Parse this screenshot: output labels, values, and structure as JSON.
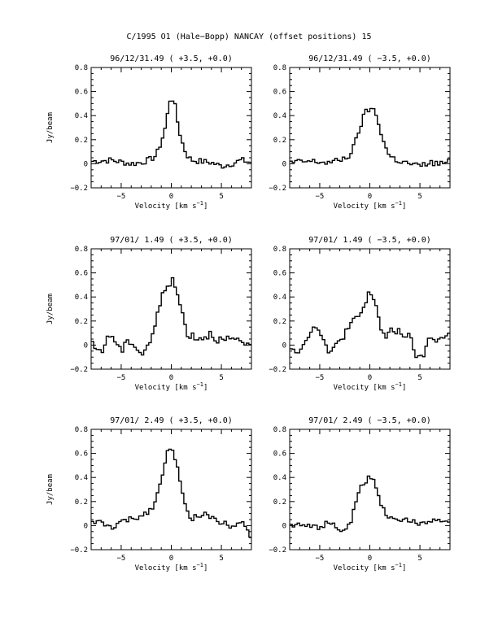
{
  "figure": {
    "suptitle": "C/1995 O1 (Hale−Bopp)   NANCAY     (offset positions)   15"
  },
  "chart_data": [
    {
      "type": "line",
      "title": "96/12/31.49  ( +3.5, +0.0)",
      "xlabel": "Velocity [km s",
      "xlabel_sup": "−1",
      "xlabel_close": "]",
      "ylabel": "Jy/beam",
      "xlim": [
        -8,
        8
      ],
      "ylim": [
        -0.2,
        0.8
      ],
      "xticks": [
        "−5",
        "0",
        "5"
      ],
      "yticks": [
        "−0.2",
        "0",
        "0.2",
        "0.4",
        "0.6",
        "0.8"
      ],
      "step": true,
      "x": [
        -8,
        -6,
        -4,
        -3,
        -2,
        -1.5,
        -1,
        -0.5,
        -0.2,
        0,
        0.3,
        0.5,
        1,
        1.5,
        2,
        3,
        4,
        5,
        6,
        7,
        8
      ],
      "y": [
        0.02,
        0.03,
        0.0,
        0.01,
        0.04,
        0.07,
        0.18,
        0.33,
        0.52,
        0.55,
        0.52,
        0.4,
        0.2,
        0.08,
        0.03,
        0.02,
        0.01,
        -0.02,
        0.0,
        0.03,
        0.01
      ]
    },
    {
      "type": "line",
      "title": "96/12/31.49  ( −3.5, +0.0)",
      "xlabel": "Velocity [km s",
      "xlabel_sup": "−1",
      "xlabel_close": "]",
      "ylabel": "",
      "xlim": [
        -8,
        8
      ],
      "ylim": [
        -0.2,
        0.8
      ],
      "xticks": [
        "−5",
        "0",
        "5"
      ],
      "yticks": [
        "−0.2",
        "0",
        "0.2",
        "0.4",
        "0.6",
        "0.8"
      ],
      "step": true,
      "x": [
        -8,
        -6,
        -4,
        -3,
        -2,
        -1.5,
        -1,
        -0.5,
        0,
        0.5,
        1,
        1.5,
        2,
        3,
        4,
        5,
        6,
        7,
        8
      ],
      "y": [
        0.01,
        0.02,
        0.01,
        0.03,
        0.07,
        0.16,
        0.3,
        0.42,
        0.46,
        0.44,
        0.3,
        0.15,
        0.06,
        0.02,
        0.0,
        -0.02,
        0.01,
        0.0,
        0.02
      ]
    },
    {
      "type": "line",
      "title": "97/01/ 1.49  ( +3.5, +0.0)",
      "xlabel": "Velocity [km s",
      "xlabel_sup": "−1",
      "xlabel_close": "]",
      "ylabel": "Jy/beam",
      "xlim": [
        -8,
        8
      ],
      "ylim": [
        -0.2,
        0.8
      ],
      "xticks": [
        "−5",
        "0",
        "5"
      ],
      "yticks": [
        "−0.2",
        "0",
        "0.2",
        "0.4",
        "0.6",
        "0.8"
      ],
      "step": true,
      "x": [
        -8,
        -7,
        -6,
        -5,
        -4,
        -3,
        -2,
        -1.5,
        -1,
        -0.5,
        0,
        0.5,
        1,
        1.5,
        2,
        3,
        4,
        5,
        6,
        7,
        8
      ],
      "y": [
        0.0,
        -0.05,
        0.1,
        -0.05,
        0.05,
        -0.08,
        0.05,
        0.2,
        0.38,
        0.5,
        0.54,
        0.46,
        0.3,
        0.12,
        0.08,
        0.06,
        0.1,
        0.03,
        0.05,
        0.0,
        0.02
      ]
    },
    {
      "type": "line",
      "title": "97/01/ 1.49  ( −3.5, +0.0)",
      "xlabel": "Velocity [km s",
      "xlabel_sup": "−1",
      "xlabel_close": "]",
      "ylabel": "",
      "xlim": [
        -8,
        8
      ],
      "ylim": [
        -0.2,
        0.8
      ],
      "xticks": [
        "−5",
        "0",
        "5"
      ],
      "yticks": [
        "−0.2",
        "0",
        "0.2",
        "0.4",
        "0.6",
        "0.8"
      ],
      "step": true,
      "x": [
        -8,
        -7,
        -6,
        -5,
        -4,
        -3,
        -2,
        -1.5,
        -1,
        -0.5,
        0,
        0.5,
        1,
        1.5,
        2,
        3,
        4,
        5,
        6,
        7,
        8
      ],
      "y": [
        0.0,
        -0.05,
        0.12,
        0.15,
        -0.1,
        0.05,
        0.15,
        0.2,
        0.25,
        0.32,
        0.44,
        0.38,
        0.18,
        0.05,
        0.1,
        0.12,
        0.05,
        -0.15,
        0.06,
        0.05,
        0.08
      ]
    },
    {
      "type": "line",
      "title": "97/01/ 2.49  ( +3.5, +0.0)",
      "xlabel": "Velocity [km s",
      "xlabel_sup": "−1",
      "xlabel_close": "]",
      "ylabel": "Jy/beam",
      "xlim": [
        -8,
        8
      ],
      "ylim": [
        -0.2,
        0.8
      ],
      "xticks": [
        "−5",
        "0",
        "5"
      ],
      "yticks": [
        "−0.2",
        "0",
        "0.2",
        "0.4",
        "0.6",
        "0.8"
      ],
      "step": true,
      "x": [
        -8,
        -7,
        -6,
        -5,
        -4,
        -3,
        -2,
        -1.5,
        -1,
        -0.5,
        0,
        0.5,
        1,
        1.5,
        2,
        3,
        4,
        5,
        6,
        7,
        8
      ],
      "y": [
        0.04,
        0.02,
        -0.02,
        0.03,
        0.05,
        0.08,
        0.14,
        0.22,
        0.38,
        0.6,
        0.63,
        0.55,
        0.3,
        0.12,
        0.05,
        0.1,
        0.07,
        0.03,
        0.0,
        0.05,
        -0.1
      ]
    },
    {
      "type": "line",
      "title": "97/01/ 2.49  ( −3.5, +0.0)",
      "xlabel": "Velocity [km s",
      "xlabel_sup": "−1",
      "xlabel_close": "]",
      "ylabel": "",
      "xlim": [
        -8,
        8
      ],
      "ylim": [
        -0.2,
        0.8
      ],
      "xticks": [
        "−5",
        "0",
        "5"
      ],
      "yticks": [
        "−0.2",
        "0",
        "0.2",
        "0.4",
        "0.6",
        "0.8"
      ],
      "step": true,
      "x": [
        -8,
        -7,
        -6,
        -5,
        -4,
        -3,
        -2,
        -1.5,
        -1,
        -0.5,
        0,
        0.5,
        1,
        1.5,
        2,
        3,
        4,
        5,
        6,
        7,
        8
      ],
      "y": [
        0.0,
        0.02,
        0.01,
        -0.02,
        0.03,
        -0.05,
        0.0,
        0.15,
        0.3,
        0.36,
        0.42,
        0.35,
        0.2,
        0.1,
        0.08,
        0.05,
        0.03,
        0.02,
        0.05,
        0.04,
        0.02
      ]
    }
  ]
}
